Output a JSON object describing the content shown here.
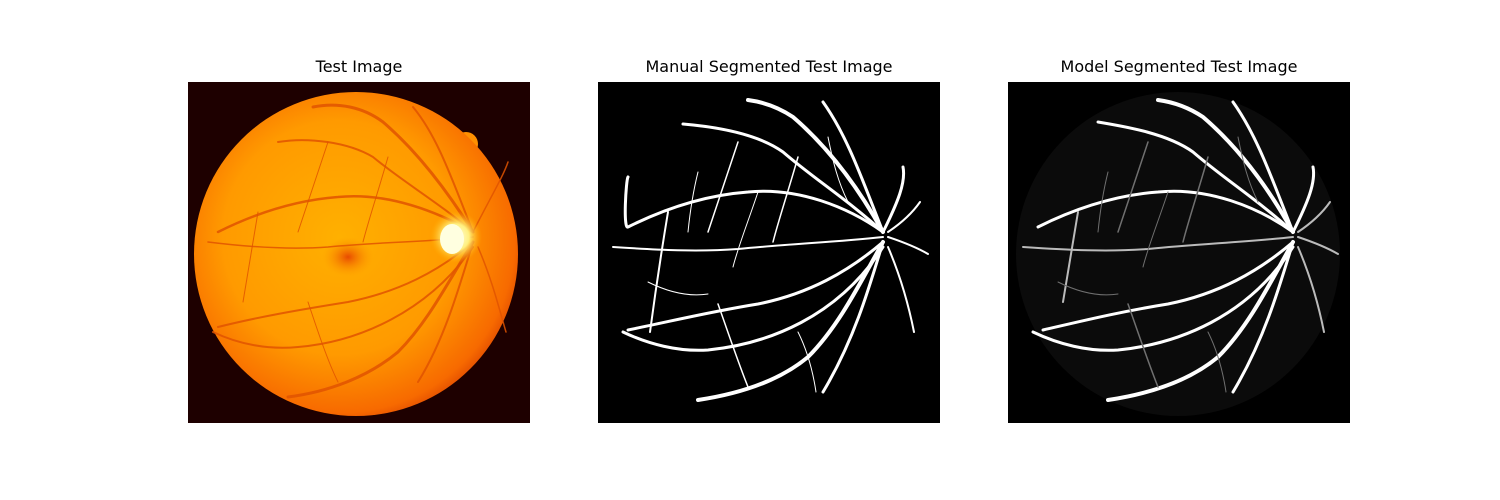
{
  "figure": {
    "panels": [
      {
        "title": "Test Image"
      },
      {
        "title": "Manual Segmented Test Image"
      },
      {
        "title": "Model Segmented Test Image"
      }
    ]
  }
}
